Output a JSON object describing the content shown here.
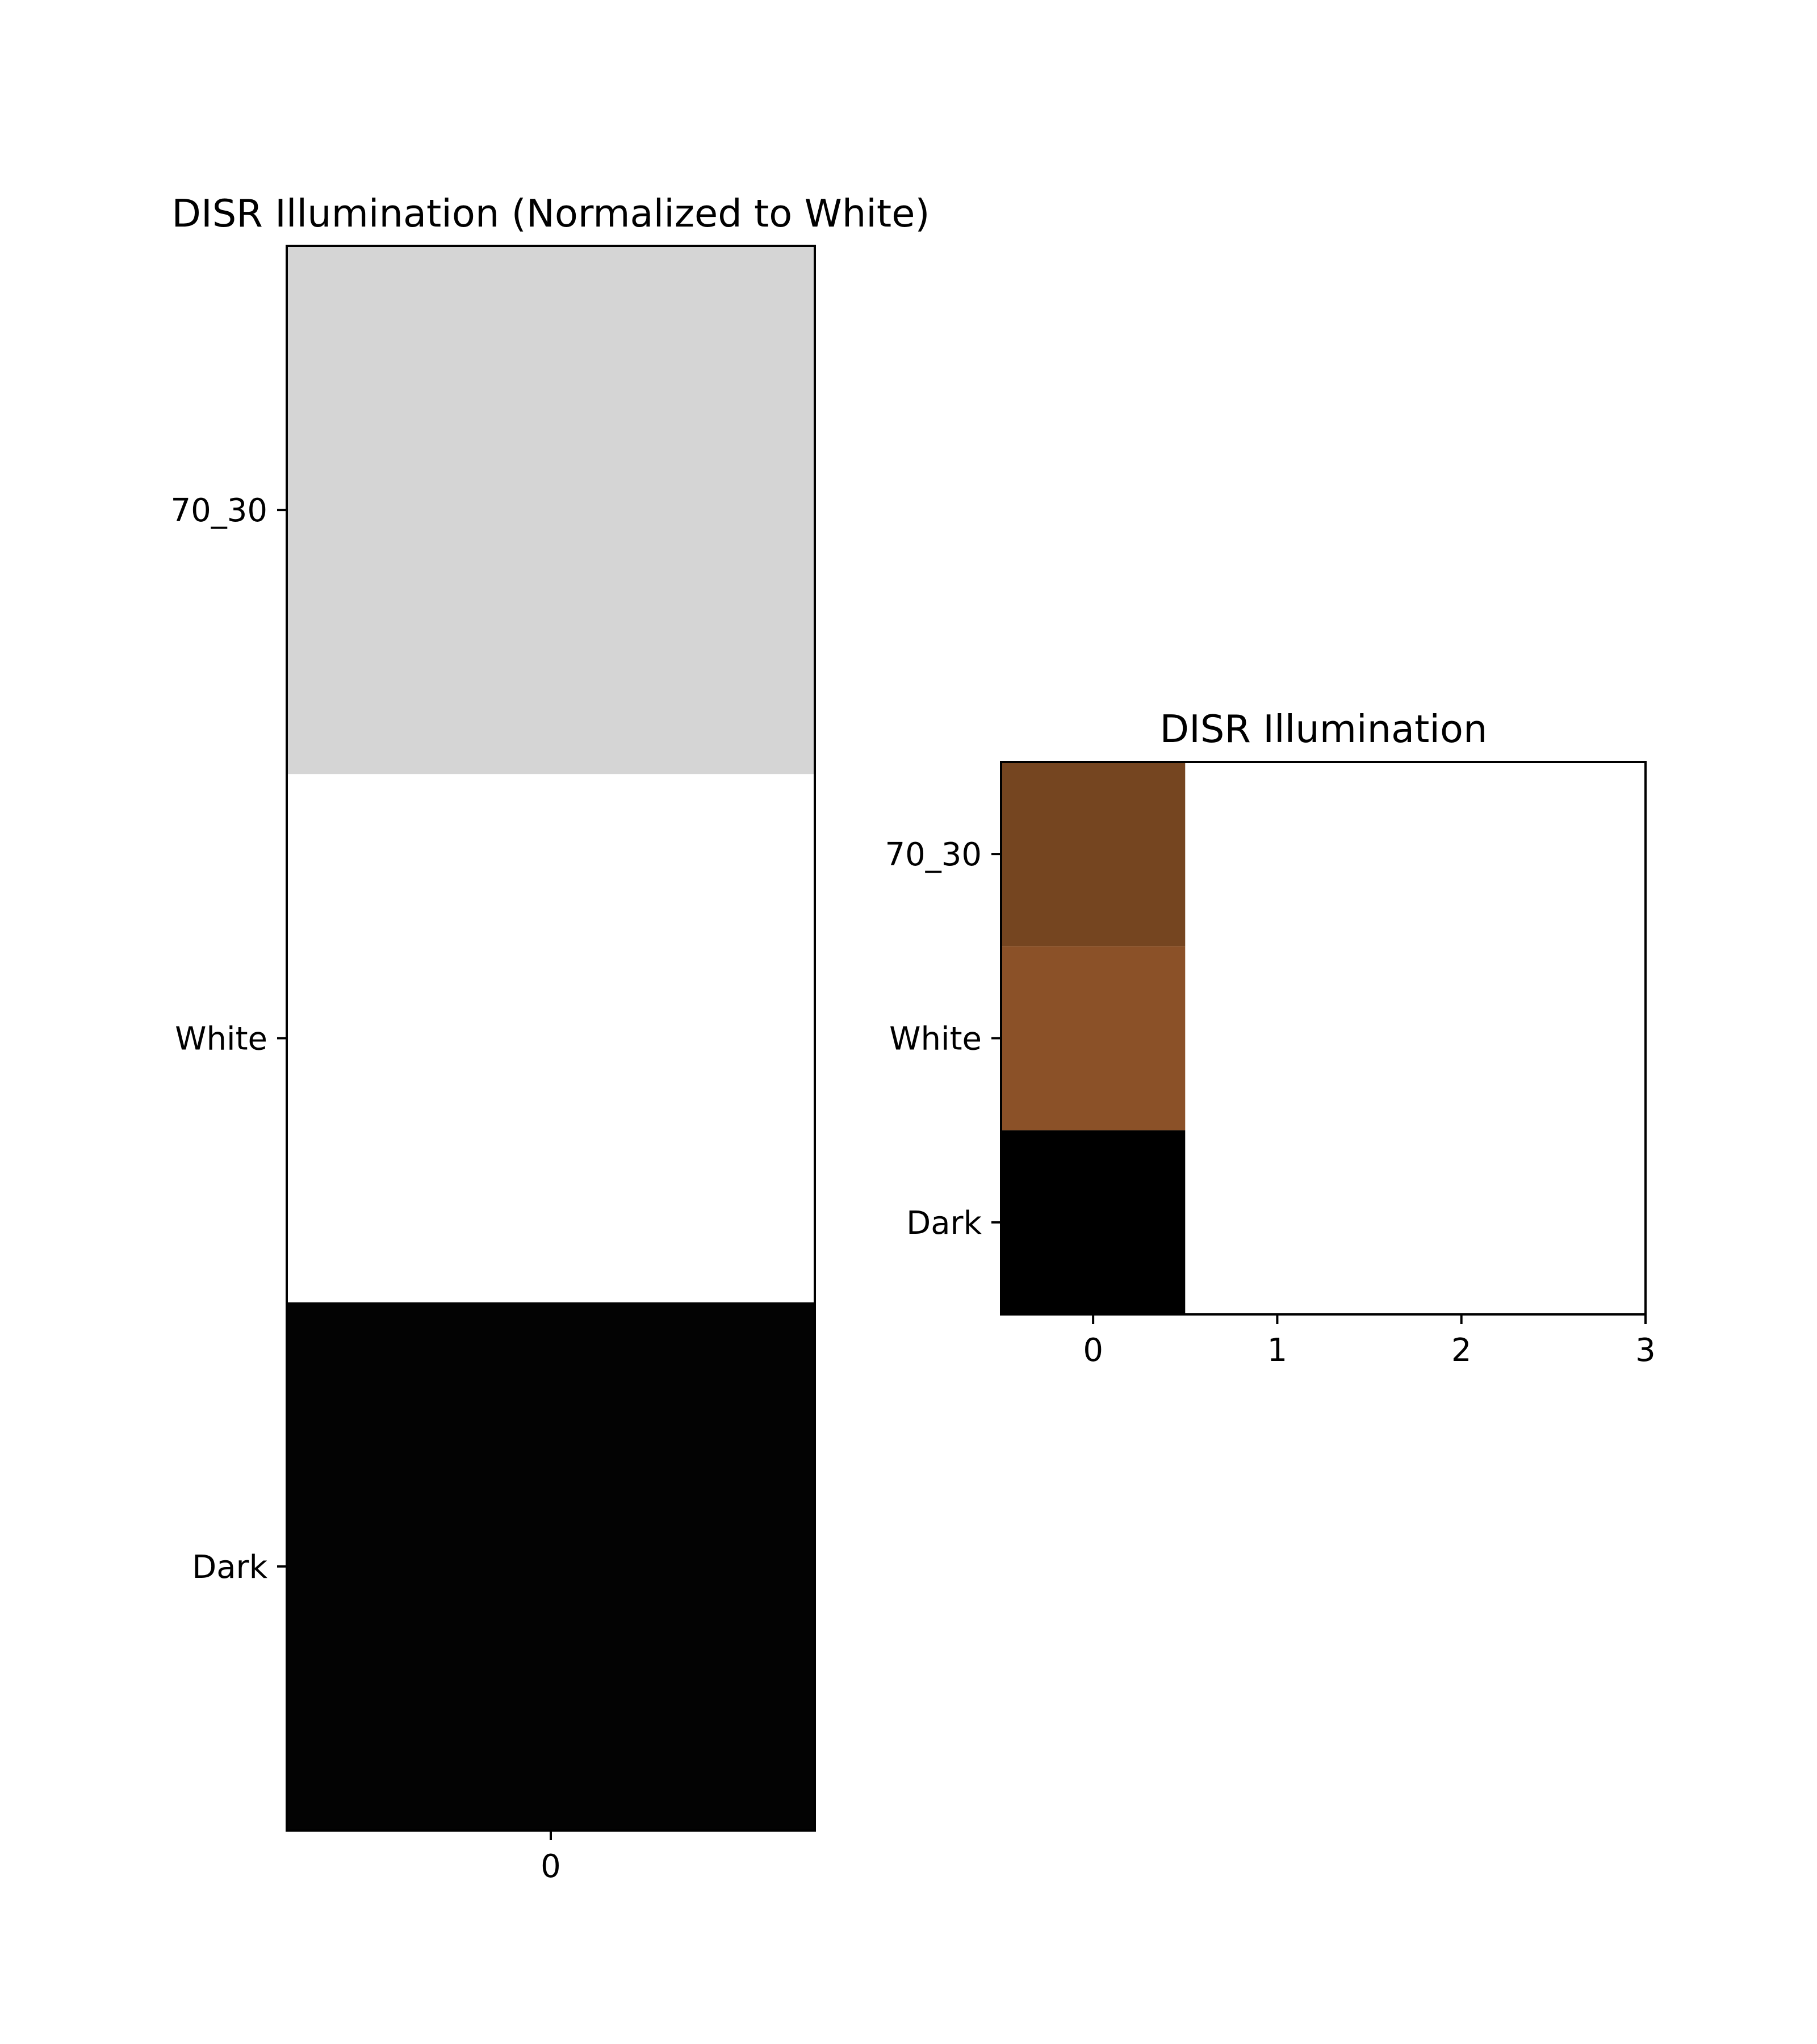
{
  "chart_data": [
    {
      "type": "heatmap",
      "title": "DISR Illumination (Normalized to White)",
      "xlabel": "",
      "ylabel": "",
      "x_ticks": [
        "0"
      ],
      "y_ticks": [
        "70_30",
        "White",
        "Dark"
      ],
      "xlim": [
        -0.5,
        0.5
      ],
      "ylim": [
        2.5,
        -0.5
      ],
      "grid": false,
      "cells": [
        {
          "row": "70_30",
          "col": 0,
          "color": "#d5d5d5"
        },
        {
          "row": "White",
          "col": 0,
          "color": "#ffffff"
        },
        {
          "row": "Dark",
          "col": 0,
          "color": "#030303"
        }
      ]
    },
    {
      "type": "heatmap",
      "title": "DISR Illumination",
      "xlabel": "",
      "ylabel": "",
      "x_ticks": [
        "0",
        "1",
        "2",
        "3"
      ],
      "y_ticks": [
        "70_30",
        "White",
        "Dark"
      ],
      "xlim": [
        -0.5,
        3.0
      ],
      "ylim": [
        2.5,
        -0.5
      ],
      "grid": false,
      "cells": [
        {
          "row": "70_30",
          "col": 0,
          "color": "#754520"
        },
        {
          "row": "White",
          "col": 0,
          "color": "#8b5128"
        },
        {
          "row": "Dark",
          "col": 0,
          "color": "#000000"
        }
      ]
    }
  ]
}
